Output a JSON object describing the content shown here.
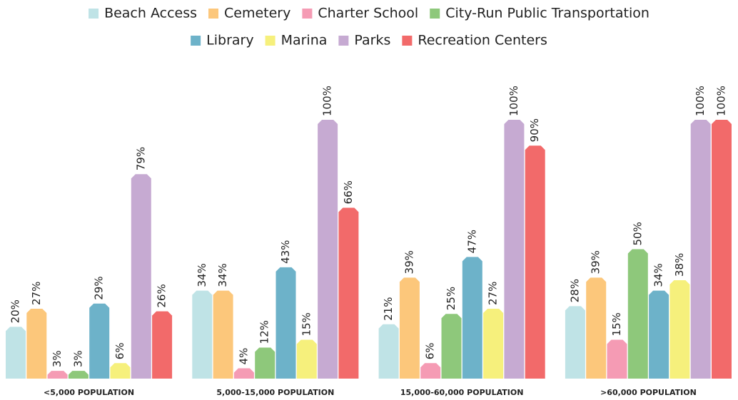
{
  "chart_data": {
    "type": "bar",
    "categories": [
      "<5,000 POPULATION",
      "5,000-15,000 POPULATION",
      "15,000-60,000 POPULATION",
      ">60,000 POPULATION"
    ],
    "ylim": [
      0,
      100
    ],
    "series": [
      {
        "name": "Beach Access",
        "color": "#bfe3e6",
        "values": [
          20,
          34,
          21,
          28
        ],
        "value_labels": [
          "20%",
          "34%",
          "21%",
          "28%"
        ]
      },
      {
        "name": "Cemetery",
        "color": "#fcc77b",
        "values": [
          27,
          34,
          39,
          39
        ],
        "value_labels": [
          "27%",
          "34%",
          "39%",
          "39%"
        ]
      },
      {
        "name": "Charter School",
        "color": "#f59bb4",
        "values": [
          3,
          4,
          6,
          15
        ],
        "value_labels": [
          "3%",
          "4%",
          "6%",
          "15%"
        ]
      },
      {
        "name": "City-Run Public Transportation",
        "color": "#8ec87b",
        "values": [
          3,
          12,
          25,
          50
        ],
        "value_labels": [
          "3%",
          "12%",
          "25%",
          "50%"
        ]
      },
      {
        "name": "Library",
        "color": "#6db2c9",
        "values": [
          29,
          43,
          47,
          34
        ],
        "value_labels": [
          "29%",
          "43%",
          "47%",
          "34%"
        ]
      },
      {
        "name": "Marina",
        "color": "#f6f07c",
        "values": [
          6,
          15,
          27,
          38
        ],
        "value_labels": [
          "6%",
          "15%",
          "27%",
          "38%"
        ]
      },
      {
        "name": "Parks",
        "color": "#c6aad2",
        "values": [
          79,
          100,
          100,
          100
        ],
        "value_labels": [
          "79%",
          "100%",
          "100%",
          "100%"
        ]
      },
      {
        "name": "Recreation Centers",
        "color": "#f26a6a",
        "values": [
          26,
          66,
          90,
          100
        ],
        "value_labels": [
          "26%",
          "66%",
          "90%",
          "100%"
        ]
      }
    ]
  }
}
